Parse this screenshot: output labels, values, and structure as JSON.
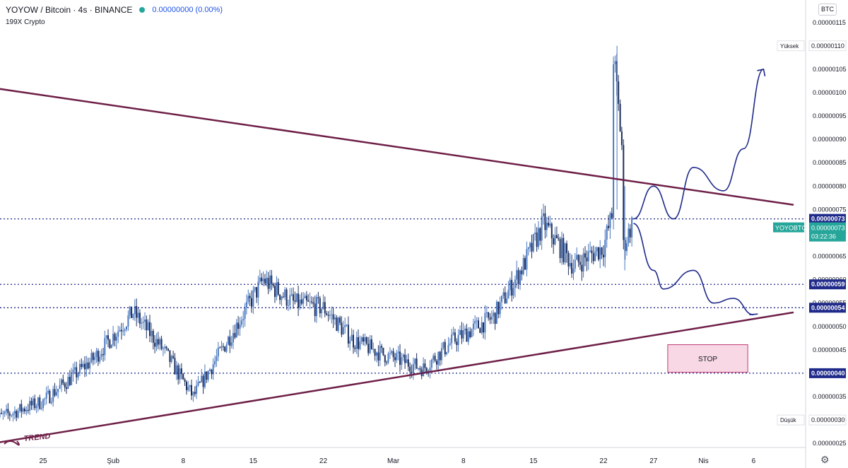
{
  "header": {
    "title": "YOYOW / Bitcoin · 4s · BINANCE",
    "change": "0.00000000 (0.00%)",
    "subtitle": "199X Crypto",
    "currency": "BTC"
  },
  "chart_data": {
    "type": "candlestick",
    "y_axis": {
      "range": [
        2.2e-07,
        1.16e-06
      ],
      "ticks": [
        "0.00000115",
        "0.00000110",
        "0.00000105",
        "0.00000100",
        "0.00000095",
        "0.00000090",
        "0.00000085",
        "0.00000080",
        "0.00000075",
        "0.00000070",
        "0.00000065",
        "0.00000060",
        "0.00000055",
        "0.00000050",
        "0.00000045",
        "0.00000040",
        "0.00000035",
        "0.00000030",
        "0.00000025"
      ],
      "tick_values": [
        1.15,
        1.1,
        1.05,
        1.0,
        0.95,
        0.9,
        0.85,
        0.8,
        0.75,
        0.7,
        0.65,
        0.6,
        0.55,
        0.5,
        0.45,
        0.4,
        0.35,
        0.3,
        0.25
      ]
    },
    "x_axis": {
      "labels": [
        "25",
        "Şub",
        "8",
        "15",
        "22",
        "Mar",
        "8",
        "15",
        "22",
        "27",
        "Nis",
        "6"
      ],
      "dates": [
        "2021-01-25",
        "2021-02-01",
        "2021-02-08",
        "2021-02-15",
        "2021-02-22",
        "2021-03-01",
        "2021-03-08",
        "2021-03-15",
        "2021-03-22",
        "2021-03-27",
        "2021-04-01",
        "2021-04-06"
      ]
    },
    "price_path": [
      {
        "date": "2021-01-20",
        "price": 0.3
      },
      {
        "date": "2021-01-25",
        "price": 0.34
      },
      {
        "date": "2021-01-30",
        "price": 0.43
      },
      {
        "date": "2021-02-03",
        "price": 0.53
      },
      {
        "date": "2021-02-06",
        "price": 0.45
      },
      {
        "date": "2021-02-09",
        "price": 0.35
      },
      {
        "date": "2021-02-13",
        "price": 0.49
      },
      {
        "date": "2021-02-16",
        "price": 0.6
      },
      {
        "date": "2021-02-19",
        "price": 0.55
      },
      {
        "date": "2021-02-22",
        "price": 0.54
      },
      {
        "date": "2021-02-25",
        "price": 0.47
      },
      {
        "date": "2021-02-28",
        "price": 0.44
      },
      {
        "date": "2021-03-04",
        "price": 0.41
      },
      {
        "date": "2021-03-07",
        "price": 0.47
      },
      {
        "date": "2021-03-11",
        "price": 0.52
      },
      {
        "date": "2021-03-14",
        "price": 0.63
      },
      {
        "date": "2021-03-16",
        "price": 0.72
      },
      {
        "date": "2021-03-19",
        "price": 0.63
      },
      {
        "date": "2021-03-22",
        "price": 0.67
      },
      {
        "date": "2021-03-23",
        "price": 0.75
      },
      {
        "date": "2021-03-23",
        "price": 1.08
      },
      {
        "date": "2021-03-24",
        "price": 0.85
      },
      {
        "date": "2021-03-24",
        "price": 0.67
      },
      {
        "date": "2021-03-25",
        "price": 0.73
      }
    ],
    "lines": {
      "resistance": {
        "points": [
          {
            "date": "2021-01-20",
            "price": 1.01
          },
          {
            "date": "2021-04-10",
            "price": 0.76
          }
        ],
        "color": "#6e1f47"
      },
      "trend": {
        "label": "TREND",
        "points": [
          {
            "date": "2021-01-20",
            "price": 0.25
          },
          {
            "date": "2021-04-10",
            "price": 0.53
          }
        ],
        "color": "#6e1f47"
      }
    },
    "dotted_levels": [
      {
        "value": 0.73,
        "label": "0.00000073"
      },
      {
        "value": 0.59,
        "label": "0.00000059"
      },
      {
        "value": 0.54,
        "label": "0.00000054"
      },
      {
        "value": 0.4,
        "label": "0.00000040"
      }
    ],
    "current": {
      "symbol": "YOYOBTC",
      "price": "0.00000073",
      "countdown": "03:22:36",
      "value": 0.73
    },
    "high": {
      "label": "Yüksek",
      "price": "0.00000110",
      "value": 1.1
    },
    "low": {
      "label": "Düşük",
      "price": "0.00000030",
      "value": 0.3
    },
    "stop_box": {
      "label": "STOP",
      "from_date": "2021-03-28",
      "to_date": "2021-04-05",
      "top": 0.461,
      "bottom": 0.402
    },
    "scenarios": [
      {
        "name": "bullish",
        "points": [
          {
            "date": "2021-03-25",
            "price": 0.73
          },
          {
            "date": "2021-03-27",
            "price": 0.8
          },
          {
            "date": "2021-03-29",
            "price": 0.73
          },
          {
            "date": "2021-03-31",
            "price": 0.84
          },
          {
            "date": "2021-04-03",
            "price": 0.79
          },
          {
            "date": "2021-04-05",
            "price": 0.88
          },
          {
            "date": "2021-04-07",
            "price": 1.05
          }
        ]
      },
      {
        "name": "bearish",
        "points": [
          {
            "date": "2021-03-25",
            "price": 0.72
          },
          {
            "date": "2021-03-27",
            "price": 0.62
          },
          {
            "date": "2021-03-28",
            "price": 0.58
          },
          {
            "date": "2021-03-31",
            "price": 0.62
          },
          {
            "date": "2021-04-02",
            "price": 0.55
          },
          {
            "date": "2021-04-04",
            "price": 0.56
          },
          {
            "date": "2021-04-06",
            "price": 0.525
          }
        ]
      }
    ],
    "colors": {
      "up": "#4a78c0",
      "down": "#1d2f5c",
      "dotted": "#1f2a8a",
      "arrow": "#1f2a8a",
      "current": "#26a69a",
      "axis_text": "#131722",
      "stop_fill": "#f8d8e5",
      "stop_border": "#c03b73"
    }
  }
}
